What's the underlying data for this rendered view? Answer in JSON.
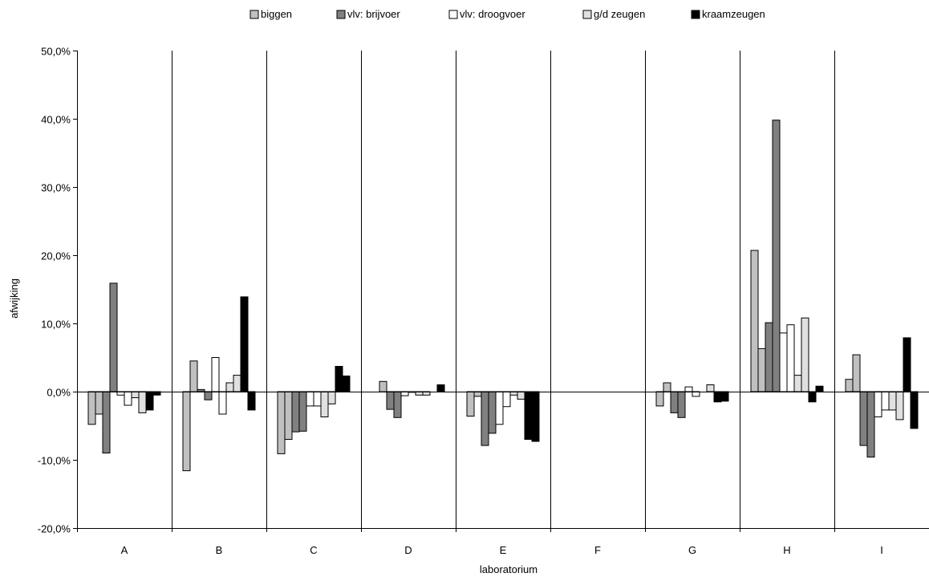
{
  "chart_data": {
    "type": "bar",
    "title": "",
    "xlabel": "laboratorium",
    "ylabel": "afwijking",
    "ylim": [
      -20,
      50
    ],
    "yticks": [
      -20,
      -10,
      0,
      10,
      20,
      30,
      40,
      50
    ],
    "ytick_labels": [
      "-20,0%",
      "-10,0%",
      "0,0%",
      "10,0%",
      "20,0%",
      "30,0%",
      "40,0%",
      "50,0%"
    ],
    "grid": false,
    "legend_position": "top",
    "categories": [
      "A",
      "B",
      "C",
      "D",
      "E",
      "F",
      "G",
      "H",
      "I"
    ],
    "series": [
      {
        "name": "biggen",
        "color": "#c0c0c0",
        "values": [
          [
            -4.8,
            -3.3
          ],
          [
            -11.6,
            4.5
          ],
          [
            -9.1,
            -7.0
          ],
          [
            0.0,
            1.5
          ],
          [
            -3.6,
            -0.7
          ],
          [
            0.0,
            0.0
          ],
          [
            -2.1,
            1.3
          ],
          [
            20.7,
            6.3
          ],
          [
            1.8,
            5.4
          ]
        ]
      },
      {
        "name": "vlv: brijvoer",
        "color": "#808080",
        "values": [
          [
            -9.0,
            15.9
          ],
          [
            0.3,
            -1.2
          ],
          [
            -5.9,
            -5.8
          ],
          [
            -2.6,
            -3.8
          ],
          [
            -7.9,
            -6.1
          ],
          [
            0.0,
            0.0
          ],
          [
            -3.1,
            -3.8
          ],
          [
            10.1,
            39.8
          ],
          [
            -7.9,
            -9.6
          ]
        ]
      },
      {
        "name": "vlv: droogvoer",
        "color": "#ffffff",
        "values": [
          [
            -0.5,
            -2.0
          ],
          [
            5.0,
            -3.3
          ],
          [
            -2.1,
            -2.1
          ],
          [
            -0.6,
            -0.1
          ],
          [
            -4.8,
            -2.2
          ],
          [
            0.0,
            0.0
          ],
          [
            0.7,
            -0.7
          ],
          [
            8.6,
            9.8
          ],
          [
            -3.7,
            -2.7
          ]
        ]
      },
      {
        "name": "g/d zeugen",
        "color": "#e0e0e0",
        "values": [
          [
            -0.9,
            -3.1
          ],
          [
            1.3,
            2.4
          ],
          [
            -3.7,
            -1.8
          ],
          [
            -0.5,
            -0.5
          ],
          [
            -0.5,
            -1.1
          ],
          [
            0.0,
            0.0
          ],
          [
            0.0,
            1.0
          ],
          [
            2.4,
            10.8
          ],
          [
            -2.7,
            -4.1
          ]
        ]
      },
      {
        "name": "kraamzeugen",
        "color": "#000000",
        "values": [
          [
            -2.7,
            -0.5
          ],
          [
            13.9,
            -2.7
          ],
          [
            3.7,
            2.3
          ],
          [
            0.0,
            1.0
          ],
          [
            -7.0,
            -7.3
          ],
          [
            0.0,
            0.0
          ],
          [
            -1.5,
            -1.4
          ],
          [
            -1.5,
            0.8
          ],
          [
            7.9,
            -5.4
          ]
        ]
      }
    ]
  }
}
